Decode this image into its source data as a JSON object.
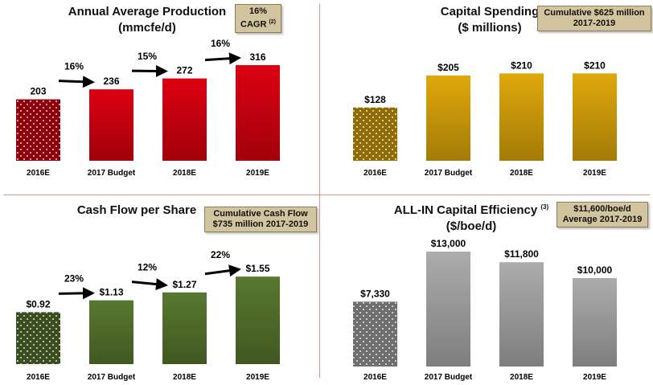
{
  "colors": {
    "production": "#c4000f",
    "capital": "#c8960a",
    "cashflow": "#4f6b2a",
    "efficiency": "#9a9a9a",
    "badge": "#d2c49e",
    "divider": "#e89090"
  },
  "panels": {
    "production": {
      "title": "Annual Average Production",
      "subtitle": "(mmcfe/d)",
      "badge_line1": "16%",
      "badge_line2": "CAGR",
      "badge_note": "(2)"
    },
    "capital": {
      "title": "Capital Spending",
      "subtitle": "($ millions)",
      "badge_line1": "Cumulative $625 million",
      "badge_line2": "2017-2019"
    },
    "cashflow": {
      "title": "Cash Flow per Share",
      "badge_line1": "Cumulative Cash Flow",
      "badge_line2": "$735 million 2017-2019"
    },
    "efficiency": {
      "title": "ALL-IN Capital Efficiency",
      "title_note": "(3)",
      "subtitle": "($/boe/d)",
      "badge_line1": "$11,600/boe/d",
      "badge_line2": "Average 2017-2019"
    }
  },
  "chart_data": [
    {
      "id": "production",
      "type": "bar",
      "title": "Annual Average Production (mmcfe/d)",
      "categories": [
        "2016E",
        "2017 Budget",
        "2018E",
        "2019E"
      ],
      "values": [
        203,
        236,
        272,
        316
      ],
      "labels": [
        "203",
        "236",
        "272",
        "316"
      ],
      "growth": [
        "16%",
        "15%",
        "16%"
      ],
      "ylim": [
        0,
        340
      ],
      "first_bar_pattern": "dots"
    },
    {
      "id": "capital",
      "type": "bar",
      "title": "Capital Spending ($ millions)",
      "categories": [
        "2016E",
        "2017 Budget",
        "2018E",
        "2019E"
      ],
      "values": [
        128,
        205,
        210,
        210
      ],
      "labels": [
        "$128",
        "$205",
        "$210",
        "$210"
      ],
      "growth": [],
      "ylim": [
        0,
        228
      ],
      "first_bar_pattern": "dots"
    },
    {
      "id": "cashflow",
      "type": "bar",
      "title": "Cash Flow per Share",
      "categories": [
        "2016E",
        "2017 Budget",
        "2018E",
        "2019E"
      ],
      "values": [
        0.92,
        1.13,
        1.27,
        1.55
      ],
      "labels": [
        "$0.92",
        "$1.13",
        "$1.27",
        "$1.55"
      ],
      "growth": [
        "23%",
        "12%",
        "22%"
      ],
      "ylim": [
        0,
        1.68
      ],
      "first_bar_pattern": "dots"
    },
    {
      "id": "efficiency",
      "type": "bar",
      "title": "ALL-IN Capital Efficiency ($/boe/d)",
      "categories": [
        "2016E",
        "2017 Budget",
        "2018E",
        "2019E"
      ],
      "values": [
        7330,
        13000,
        11800,
        10000
      ],
      "labels": [
        "$7,330",
        "$13,000",
        "$11,800",
        "$10,000"
      ],
      "growth": [],
      "ylim": [
        0,
        13000
      ],
      "first_bar_pattern": "dots"
    }
  ]
}
